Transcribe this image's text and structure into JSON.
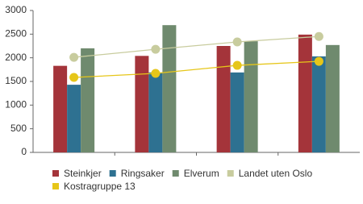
{
  "chart_data": {
    "type": "bar",
    "categories": [
      null,
      null,
      null,
      null
    ],
    "series": [
      {
        "name": "Steinkjer",
        "color": "#a4343a",
        "values": [
          1830,
          2040,
          2250,
          2490
        ]
      },
      {
        "name": "Ringsaker",
        "color": "#2e7191",
        "values": [
          1430,
          1690,
          1690,
          2030
        ]
      },
      {
        "name": "Elverum",
        "color": "#6f8a6e",
        "values": [
          2200,
          2690,
          2350,
          2270
        ]
      },
      {
        "name": "Landet uten Oslo",
        "color": "#c8cc9e",
        "type": "line",
        "values": [
          2010,
          2180,
          2335,
          2450
        ]
      },
      {
        "name": "Kostragruppe 13",
        "color": "#e6c619",
        "type": "line",
        "values": [
          1585,
          1670,
          1840,
          1925
        ]
      }
    ],
    "ylim": [
      0,
      3000
    ],
    "yticks": [
      0,
      500,
      1000,
      1500,
      2000,
      2500,
      3000
    ],
    "grid": false,
    "legend": "bottom"
  }
}
